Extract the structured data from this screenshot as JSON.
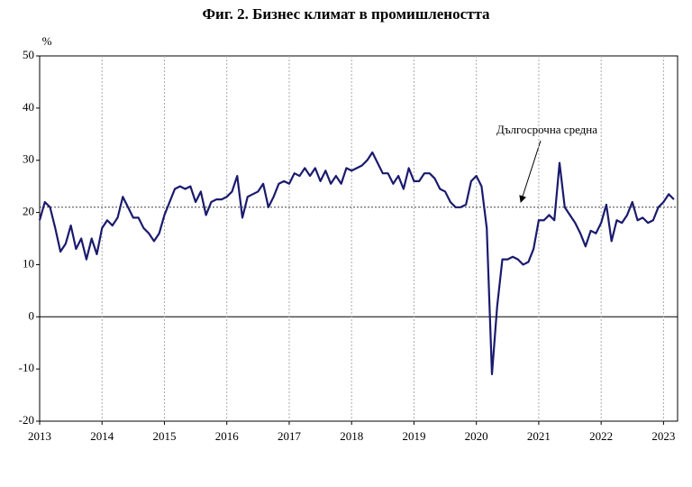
{
  "chart_data": {
    "type": "line",
    "title": "Фиг. 2. Бизнес климат в промишлеността",
    "y_unit_label": "%",
    "annotation": "Дългосрочна средна",
    "long_term_average": 21,
    "categories": [
      "2013",
      null,
      null,
      null,
      null,
      null,
      null,
      null,
      null,
      null,
      null,
      null,
      "2014",
      null,
      null,
      null,
      null,
      null,
      null,
      null,
      null,
      null,
      null,
      null,
      "2015",
      null,
      null,
      null,
      null,
      null,
      null,
      null,
      null,
      null,
      null,
      null,
      "2016",
      null,
      null,
      null,
      null,
      null,
      null,
      null,
      null,
      null,
      null,
      null,
      "2017",
      null,
      null,
      null,
      null,
      null,
      null,
      null,
      null,
      null,
      null,
      null,
      "2018",
      null,
      null,
      null,
      null,
      null,
      null,
      null,
      null,
      null,
      null,
      null,
      "2019",
      null,
      null,
      null,
      null,
      null,
      null,
      null,
      null,
      null,
      null,
      null,
      "2020",
      null,
      null,
      null,
      null,
      null,
      null,
      null,
      null,
      null,
      null,
      null,
      "2021",
      null,
      null,
      null,
      null,
      null,
      null,
      null,
      null,
      null,
      null,
      null,
      "2022",
      null,
      null,
      null,
      null,
      null,
      null,
      null,
      null,
      null,
      null,
      null,
      "2023",
      null,
      null
    ],
    "series": [
      {
        "color": "#1a1a6e",
        "values": [
          18.5,
          22,
          21,
          17,
          12.5,
          14,
          17.5,
          13,
          15,
          11,
          15,
          12,
          17,
          18.5,
          17.5,
          19,
          23,
          21,
          19,
          19,
          17,
          16,
          14.5,
          16,
          19.5,
          22,
          24.5,
          25,
          24.5,
          25,
          22,
          24,
          19.5,
          22,
          22.5,
          22.5,
          23,
          24,
          27,
          19,
          23,
          23.5,
          24,
          25.5,
          21,
          23,
          25.5,
          26,
          25.5,
          27.5,
          27,
          28.5,
          27,
          28.5,
          26,
          28,
          25.5,
          27,
          25.5,
          28.5,
          28,
          28.5,
          29,
          30,
          31.5,
          29.5,
          27.5,
          27.5,
          25.5,
          27,
          24.5,
          28.5,
          26,
          26,
          27.5,
          27.5,
          26.5,
          24.5,
          24,
          22,
          21,
          21,
          21.5,
          26,
          27,
          25,
          17,
          -11,
          2,
          11,
          11,
          11.5,
          11,
          10,
          10.5,
          13,
          18.5,
          18.5,
          19.5,
          18.5,
          29.5,
          21,
          19.5,
          18,
          16,
          13.5,
          16.5,
          16,
          18,
          21.5,
          14.5,
          18.5,
          18,
          19.5,
          22,
          18.5,
          19,
          18,
          18.5,
          21,
          22,
          23.5,
          22.5
        ]
      }
    ],
    "ylim": [
      -20,
      50
    ],
    "yticks": [
      -20,
      -10,
      0,
      10,
      20,
      30,
      40,
      50
    ]
  }
}
